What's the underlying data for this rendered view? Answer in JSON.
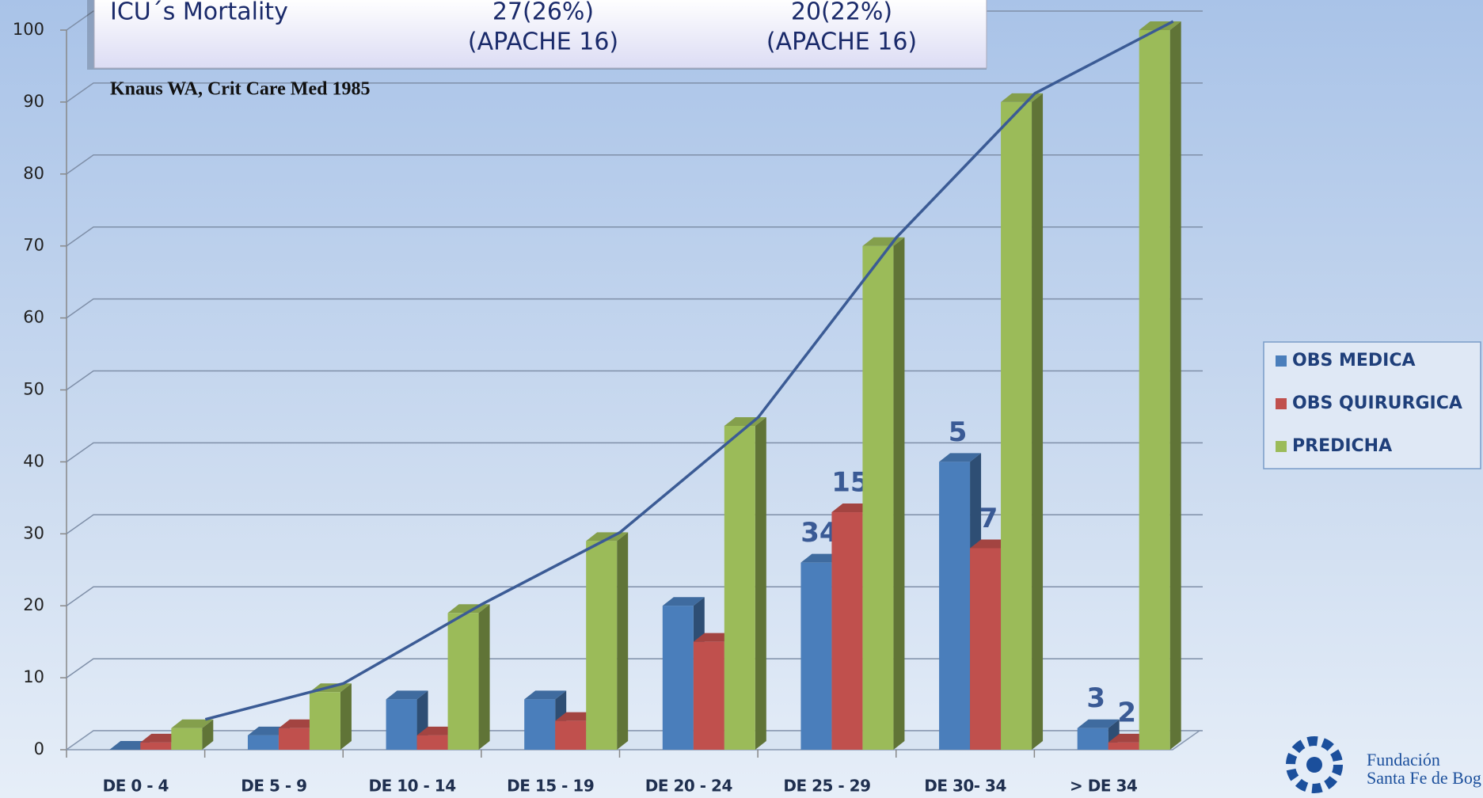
{
  "chart_data": {
    "type": "bar",
    "categories": [
      "DE 0 - 4",
      "DE 5 - 9",
      "DE 10 - 14",
      "DE 15 - 19",
      "DE 20 - 24",
      "DE 25 - 29",
      "DE 30- 34",
      "> DE 34"
    ],
    "series": [
      {
        "name": "OBS MEDICA",
        "color": "#4a7ebb",
        "values": [
          0,
          2,
          7,
          7,
          20,
          26,
          40,
          3
        ],
        "point_labels": [
          null,
          null,
          null,
          null,
          null,
          "34",
          "5",
          "3"
        ]
      },
      {
        "name": "OBS QUIRURGICA",
        "color": "#c0504d",
        "values": [
          1,
          3,
          2,
          4,
          15,
          33,
          28,
          1
        ],
        "point_labels": [
          null,
          null,
          null,
          null,
          null,
          "15",
          "7",
          "2"
        ]
      },
      {
        "name": "PREDICHA",
        "color": "#9bbb59",
        "values": [
          3,
          8,
          19,
          29,
          45,
          70,
          90,
          100
        ]
      },
      {
        "type": "line",
        "color": "#3b5b95",
        "values": [
          3,
          8,
          19,
          29,
          45,
          70,
          90,
          100
        ]
      }
    ],
    "ylim": [
      0,
      100
    ],
    "yticks": [
      0,
      10,
      20,
      30,
      40,
      50,
      60,
      70,
      80,
      90,
      100
    ],
    "grid": true,
    "legend": "right"
  },
  "table": {
    "rows": [
      [
        "ICU´s Mortality",
        "27(26%)",
        "20(22%)"
      ],
      [
        "",
        "(APACHE 16)",
        "(APACHE 16)"
      ]
    ]
  },
  "citation": "Knaus WA, Crit Care Med 1985",
  "logo": [
    "Fundación",
    "Santa Fe de Bog"
  ]
}
